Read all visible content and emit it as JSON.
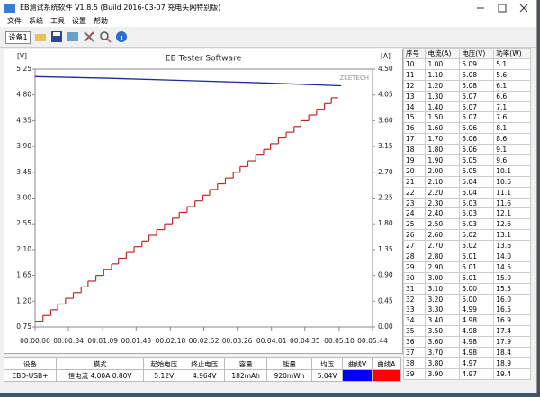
{
  "window": {
    "title": "EB测试系统软件 V1.8.5 (Build 2016-03-07 充电头网特别版)",
    "menu": [
      "文件",
      "系统",
      "工具",
      "设置",
      "帮助"
    ],
    "device_select": "设备1"
  },
  "chart_data": {
    "type": "line",
    "title": "EB Tester Software",
    "watermark": "ZKETECH",
    "y_unit": "[V]",
    "y2_unit": "[A]",
    "xlim": [
      0,
      344
    ],
    "xticks": [
      {
        "value": 0,
        "label": "00:00:00"
      },
      {
        "value": 34,
        "label": "00:00:34"
      },
      {
        "value": 69,
        "label": "00:01:09"
      },
      {
        "value": 103,
        "label": "00:01:43"
      },
      {
        "value": 138,
        "label": "00:02:18"
      },
      {
        "value": 172,
        "label": "00:02:52"
      },
      {
        "value": 206,
        "label": "00:03:26"
      },
      {
        "value": 241,
        "label": "00:04:01"
      },
      {
        "value": 275,
        "label": "00:04:35"
      },
      {
        "value": 310,
        "label": "00:05:10"
      },
      {
        "value": 344,
        "label": "00:05:44"
      }
    ],
    "ylim": [
      0.75,
      5.25
    ],
    "yticks": [
      {
        "value": 0.75,
        "label": "0.75"
      },
      {
        "value": 1.2,
        "label": "1.20"
      },
      {
        "value": 1.65,
        "label": "1.65"
      },
      {
        "value": 2.1,
        "label": "2.10"
      },
      {
        "value": 2.55,
        "label": "2.55"
      },
      {
        "value": 3,
        "label": "3.00"
      },
      {
        "value": 3.45,
        "label": "3.45"
      },
      {
        "value": 3.9,
        "label": "3.90"
      },
      {
        "value": 4.35,
        "label": "4.35"
      },
      {
        "value": 4.8,
        "label": "4.80"
      },
      {
        "value": 5.25,
        "label": "5.25"
      }
    ],
    "y2lim": [
      0,
      4.5
    ],
    "y2ticks": [
      {
        "value": 0,
        "label": "0.00"
      },
      {
        "value": 0.45,
        "label": "0.45"
      },
      {
        "value": 0.9,
        "label": "0.90"
      },
      {
        "value": 1.35,
        "label": "1.35"
      },
      {
        "value": 1.8,
        "label": "1.80"
      },
      {
        "value": 2.25,
        "label": "2.25"
      },
      {
        "value": 2.7,
        "label": "2.70"
      },
      {
        "value": 3.15,
        "label": "3.15"
      },
      {
        "value": 3.6,
        "label": "3.60"
      },
      {
        "value": 4.05,
        "label": "4.05"
      },
      {
        "value": 4.5,
        "label": "4.50"
      }
    ],
    "series": [
      {
        "color": "#1c2a9c",
        "x": [
          0,
          78,
          155,
          233,
          312
        ],
        "values": [
          5.12,
          5.09,
          5.05,
          5.01,
          4.96
        ]
      },
      {
        "color": "#c0282a",
        "axis": "y2",
        "step": true,
        "x": [
          0,
          8,
          16,
          23,
          31,
          39,
          47,
          54,
          62,
          70,
          78,
          85,
          93,
          101,
          109,
          116,
          124,
          132,
          140,
          147,
          155,
          163,
          171,
          178,
          186,
          194,
          202,
          209,
          217,
          225,
          233,
          240,
          248,
          256,
          264,
          271,
          279,
          287,
          295,
          302
        ],
        "values": [
          0.1,
          0.2,
          0.3,
          0.4,
          0.5,
          0.6,
          0.7,
          0.8,
          0.9,
          1.0,
          1.1,
          1.2,
          1.3,
          1.4,
          1.5,
          1.6,
          1.7,
          1.8,
          1.9,
          2.0,
          2.1,
          2.2,
          2.3,
          2.4,
          2.5,
          2.6,
          2.7,
          2.8,
          2.9,
          3.0,
          3.1,
          3.2,
          3.3,
          3.4,
          3.5,
          3.6,
          3.7,
          3.8,
          3.9,
          4.0
        ]
      }
    ]
  },
  "measurements": {
    "columns": [
      "序号",
      "电流(A)",
      "电压(V)",
      "功率(W)"
    ],
    "rows": [
      [
        "10",
        "1.00",
        "5.09",
        "5.1"
      ],
      [
        "11",
        "1.10",
        "5.08",
        "5.6"
      ],
      [
        "12",
        "1.20",
        "5.08",
        "6.1"
      ],
      [
        "13",
        "1.30",
        "5.07",
        "6.6"
      ],
      [
        "14",
        "1.40",
        "5.07",
        "7.1"
      ],
      [
        "15",
        "1.50",
        "5.07",
        "7.6"
      ],
      [
        "16",
        "1.60",
        "5.06",
        "8.1"
      ],
      [
        "17",
        "1.70",
        "5.06",
        "8.6"
      ],
      [
        "18",
        "1.80",
        "5.06",
        "9.1"
      ],
      [
        "19",
        "1.90",
        "5.05",
        "9.6"
      ],
      [
        "20",
        "2.00",
        "5.05",
        "10.1"
      ],
      [
        "21",
        "2.10",
        "5.04",
        "10.6"
      ],
      [
        "22",
        "2.20",
        "5.04",
        "11.1"
      ],
      [
        "23",
        "2.30",
        "5.03",
        "11.6"
      ],
      [
        "24",
        "2.40",
        "5.03",
        "12.1"
      ],
      [
        "25",
        "2.50",
        "5.03",
        "12.6"
      ],
      [
        "26",
        "2.60",
        "5.02",
        "13.1"
      ],
      [
        "27",
        "2.70",
        "5.02",
        "13.6"
      ],
      [
        "28",
        "2.80",
        "5.01",
        "14.0"
      ],
      [
        "29",
        "2.90",
        "5.01",
        "14.5"
      ],
      [
        "30",
        "3.00",
        "5.01",
        "15.0"
      ],
      [
        "31",
        "3.10",
        "5.00",
        "15.5"
      ],
      [
        "32",
        "3.20",
        "5.00",
        "16.0"
      ],
      [
        "33",
        "3.30",
        "4.99",
        "16.5"
      ],
      [
        "34",
        "3.40",
        "4.98",
        "16.9"
      ],
      [
        "35",
        "3.50",
        "4.98",
        "17.4"
      ],
      [
        "36",
        "3.60",
        "4.98",
        "17.9"
      ],
      [
        "37",
        "3.70",
        "4.98",
        "18.4"
      ],
      [
        "38",
        "3.80",
        "4.97",
        "18.9"
      ],
      [
        "39",
        "3.90",
        "4.97",
        "19.4"
      ]
    ]
  },
  "summary": {
    "columns": [
      "设备",
      "模式",
      "起始电压",
      "终止电压",
      "容量",
      "能量",
      "均压",
      "曲线V",
      "曲线A"
    ],
    "row": [
      "EBD-USB+",
      "恒电流 4.00A 0.80V",
      "5.12V",
      "4.964V",
      "182mAh",
      "920mWh",
      "5.04V"
    ],
    "curve_colors": [
      "#0000ff",
      "#ff0000"
    ]
  }
}
